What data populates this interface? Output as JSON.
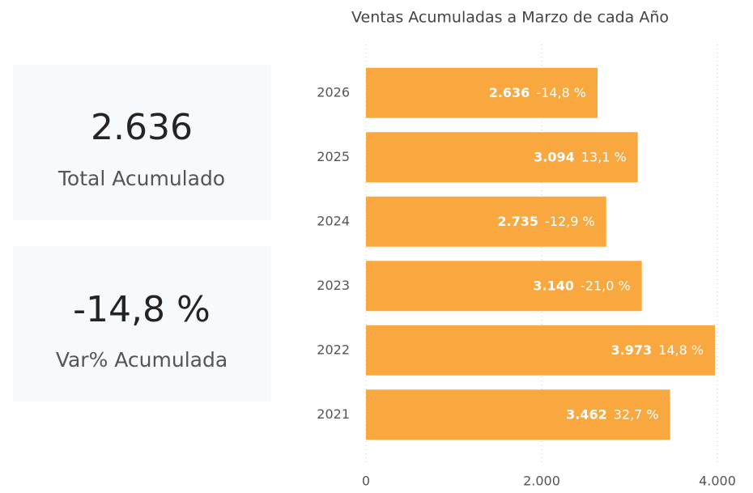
{
  "cards": [
    {
      "value": "2.636",
      "label": "Total Acumulado"
    },
    {
      "value": "-14,8 %",
      "label": "Var% Acumulada"
    }
  ],
  "chart_data": {
    "type": "bar",
    "orientation": "horizontal",
    "title": "Ventas Acumuladas a Marzo de cada Año",
    "categories": [
      "2026",
      "2025",
      "2024",
      "2023",
      "2022",
      "2021"
    ],
    "values": [
      2636,
      3094,
      2735,
      3140,
      3973,
      3462
    ],
    "value_labels": [
      "2.636",
      "3.094",
      "2.735",
      "3.140",
      "3.973",
      "3.462"
    ],
    "change_labels": [
      "-14,8 %",
      "13,1 %",
      "-12,9 %",
      "-21,0 %",
      "14,8 %",
      "32,7 %"
    ],
    "color": "#f9a83f",
    "xlim": [
      0,
      4000
    ],
    "xticks": [
      0,
      {
        "value": 2000,
        "label": "2.000"
      },
      {
        "value": 4000,
        "label": "4.000"
      }
    ],
    "grid": true
  }
}
